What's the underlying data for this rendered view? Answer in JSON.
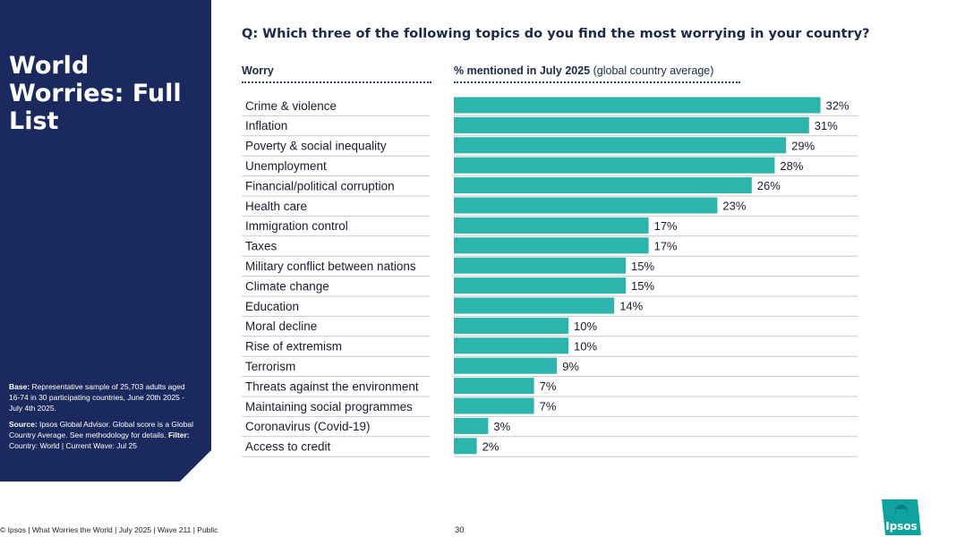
{
  "sidebar": {
    "title": "World Worries: Full List",
    "base_label": "Base:",
    "base_text": " Representative sample of 25,703 adults aged 16-74 in 30 participating countries, June 20th 2025 - July 4th 2025.",
    "source_label": "Source:",
    "source_text": " Ipsos Global Advisor. Global score is a Global Country Average. See methodology for details. ",
    "filter_label": "Filter:",
    "filter_text": " Country: World | Current Wave: Jul 25"
  },
  "question": "Q: Which three of the following topics do you find the most worrying in your country?",
  "headers": {
    "worry": "Worry",
    "value_bold": "% mentioned in July 2025",
    "value_rest": " (global country average)"
  },
  "chart_data": {
    "type": "bar",
    "orientation": "horizontal",
    "categories": [
      "Crime & violence",
      "Inflation",
      "Poverty & social inequality",
      "Unemployment",
      "Financial/political corruption",
      "Health care",
      "Immigration control",
      "Taxes",
      "Military conflict between nations",
      "Climate change",
      "Education",
      "Moral decline",
      "Rise of extremism",
      "Terrorism",
      "Threats against the environment",
      "Maintaining social programmes",
      "Coronavirus (Covid-19)",
      "Access to credit"
    ],
    "values": [
      32,
      31,
      29,
      28,
      26,
      23,
      17,
      17,
      15,
      15,
      14,
      10,
      10,
      9,
      7,
      7,
      3,
      2
    ],
    "labels": [
      "32%",
      "31%",
      "29%",
      "28%",
      "26%",
      "23%",
      "17%",
      "17%",
      "15%",
      "15%",
      "14%",
      "10%",
      "10%",
      "9%",
      "7%",
      "7%",
      "3%",
      "2%"
    ],
    "bar_color": "#2bb5ad",
    "grid": false
  },
  "footer": "© Ipsos | What Worries the World | July 2025 | Wave 211 | Public",
  "page_number": "30",
  "logo": {
    "text": "Ipsos",
    "icon": "ipsos-logo-icon"
  },
  "colors": {
    "sidebar": "#1b2a5e",
    "accent": "#2bb5ad",
    "logo": "#0fa3a0"
  }
}
